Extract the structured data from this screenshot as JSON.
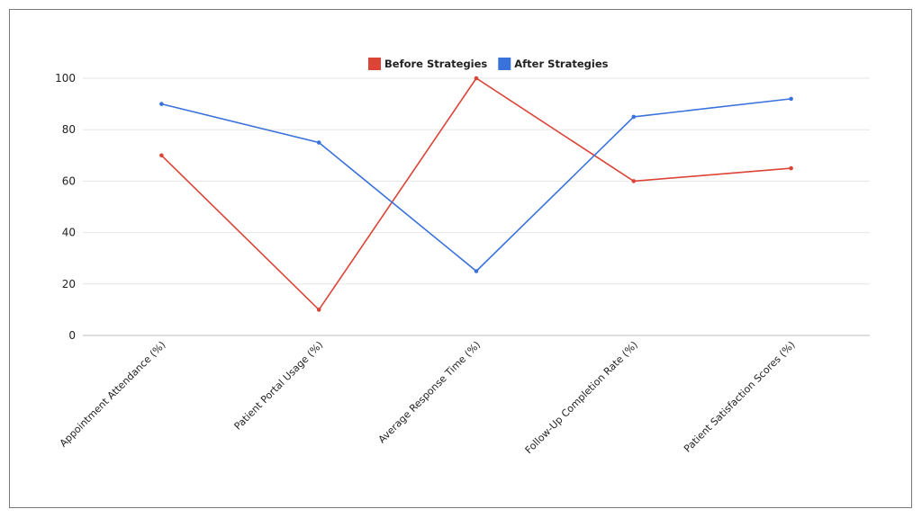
{
  "chart_data": {
    "type": "line",
    "title": "",
    "xlabel": "",
    "ylabel": "",
    "categories": [
      "Appointment Attendance (%)",
      "Patient Portal Usage (%)",
      "Average Response Time (%)",
      "Follow-Up Completion Rate (%)",
      "Patient Satisfaction Scores (%)"
    ],
    "series": [
      {
        "name": "Before Strategies",
        "color": "#db4437",
        "values": [
          70,
          10,
          100,
          60,
          65
        ]
      },
      {
        "name": "After Strategies",
        "color": "#3a72dc",
        "values": [
          90,
          75,
          25,
          85,
          92
        ]
      }
    ],
    "ylim": [
      0,
      100
    ],
    "yticks": [
      0,
      20,
      40,
      60,
      80,
      100
    ],
    "grid": true,
    "legend_position": "top-center"
  }
}
